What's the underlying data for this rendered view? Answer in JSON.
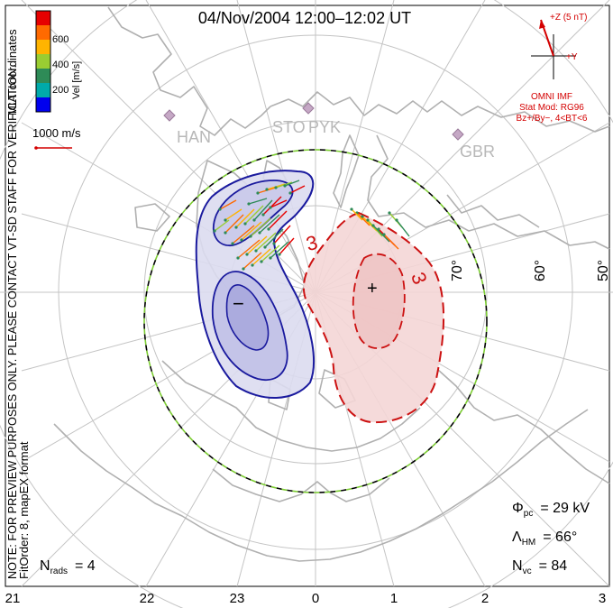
{
  "header": {
    "title": "04/Nov/2004  12:00–12:02  UT"
  },
  "left_margin": {
    "coords_label": "MLT coordinates",
    "note_line1": "NOTE: FOR PREVIEW PURPOSES ONLY. PLEASE CONTACT VT-SD STAFF FOR VERIFICATION.",
    "note_line2": "FitOrder: 8, mapEX format"
  },
  "colorbar": {
    "label": "Vel [m/s]",
    "ticks": [
      "600",
      "400",
      "200"
    ],
    "colors": [
      "#e60000",
      "#ff6a00",
      "#ffb400",
      "#9acd32",
      "#2e8b57",
      "#00aaaa",
      "#0000ee"
    ]
  },
  "scale_vector": {
    "label": "1000 m/s",
    "color": "#d40000"
  },
  "imf_panel": {
    "z_label": "+Z (5 nT)",
    "y_label": "+Y",
    "source": "OMNI IMF",
    "model_line1": "Stat Mod: RG96",
    "model_line2": "Bz+/By−, 4<BT<6",
    "color": "#d40000"
  },
  "stations": [
    {
      "code": "HAN"
    },
    {
      "code": "STO"
    },
    {
      "code": "PYK"
    },
    {
      "code": "GBR"
    }
  ],
  "latitude_labels": [
    "70°",
    "60°",
    "50°"
  ],
  "contour_labels": {
    "dusk_cell_sign": "−",
    "dawn_cell_sign": "+",
    "dawn_contour_values": [
      "3",
      "3"
    ]
  },
  "readouts": {
    "phi_symbol": "Φ",
    "phi_sub": "pc",
    "phi_value": "= 29 kV",
    "lambda_symbol": "Λ",
    "lambda_sub": "HM",
    "lambda_value": "= 66°",
    "nvc_symbol": "N",
    "nvc_sub": "vc",
    "nvc_value": "= 84",
    "nrads_symbol": "N",
    "nrads_sub": "rads",
    "nrads_value": "= 4"
  },
  "mlt_axis": {
    "ticks": [
      "21",
      "22",
      "23",
      "0",
      "1",
      "2",
      "3"
    ]
  },
  "colors": {
    "dusk_cell": "#1a1a9e",
    "dawn_cell": "#cc1111",
    "coastline": "#b0b0b0",
    "grid": "#c4c4c4",
    "boundary_dash_a": "#000000",
    "boundary_dash_b": "#7ccd32"
  }
}
